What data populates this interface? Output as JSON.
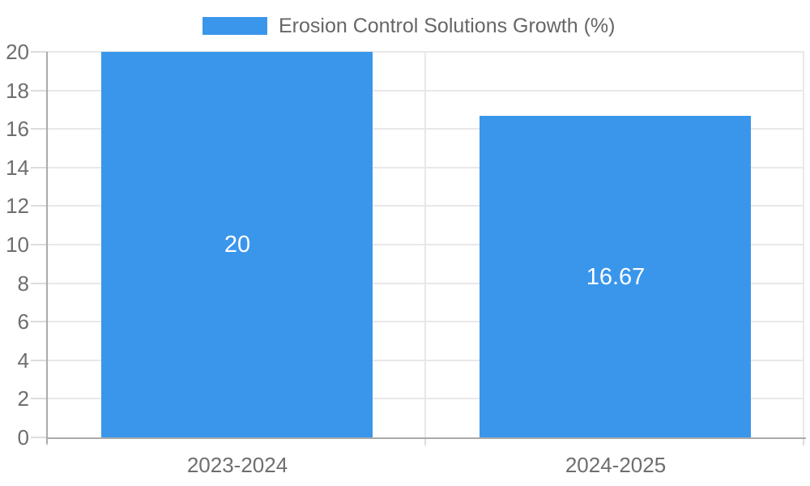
{
  "chart_data": {
    "type": "bar",
    "title": "",
    "xlabel": "",
    "ylabel": "",
    "legend": {
      "position": "top-center",
      "items": [
        {
          "label": "Erosion Control Solutions Growth (%)",
          "color": "#3a96eb"
        }
      ]
    },
    "categories": [
      "2023-2024",
      "2024-2025"
    ],
    "series": [
      {
        "name": "Erosion Control Solutions Growth (%)",
        "color": "#3a96eb",
        "values": [
          20,
          16.67
        ],
        "data_labels": [
          "20",
          "16.67"
        ]
      }
    ],
    "ylim": [
      0,
      20
    ],
    "yticks": [
      0,
      2,
      4,
      6,
      8,
      10,
      12,
      14,
      16,
      18,
      20
    ],
    "grid": true
  },
  "colors": {
    "bar": "#3a96eb",
    "data_label_text": "#ffffff",
    "legend_text": "#666666",
    "tick_label_text": "#6e6e6e",
    "gridline": "#e8e8e8",
    "tick_mark": "#dcdcdc",
    "axis_line": "#ababab",
    "background": "#ffffff"
  }
}
